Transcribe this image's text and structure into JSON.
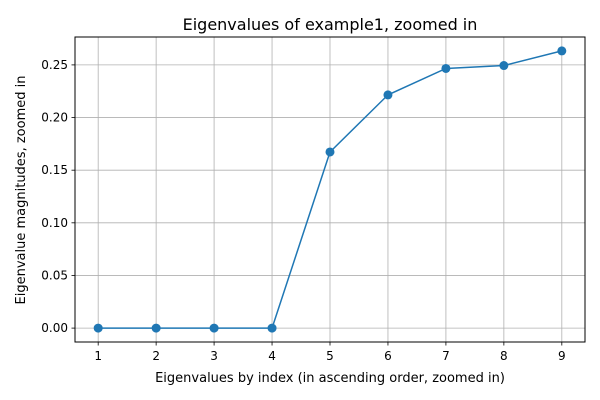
{
  "chart_data": {
    "type": "line",
    "title": "Eigenvalues of example1, zoomed in",
    "xlabel": "Eigenvalues by index (in ascending order, zoomed in)",
    "ylabel": "Eigenvalue magnitudes, zoomed in",
    "x": [
      1,
      2,
      3,
      4,
      5,
      6,
      7,
      8,
      9
    ],
    "series": [
      {
        "values": [
          0.0,
          0.0,
          0.0,
          0.0,
          0.1673,
          0.2215,
          0.2466,
          0.2494,
          0.2633
        ]
      }
    ],
    "xlim": [
      0.6,
      9.4
    ],
    "ylim": [
      -0.0132,
      0.2765
    ],
    "xticks": [
      "1",
      "2",
      "3",
      "4",
      "5",
      "6",
      "7",
      "8",
      "9"
    ],
    "yticks": [
      "0.00",
      "0.05",
      "0.10",
      "0.15",
      "0.20",
      "0.25"
    ],
    "grid": true,
    "marker": "circle",
    "line_color": "#1f77b4"
  }
}
